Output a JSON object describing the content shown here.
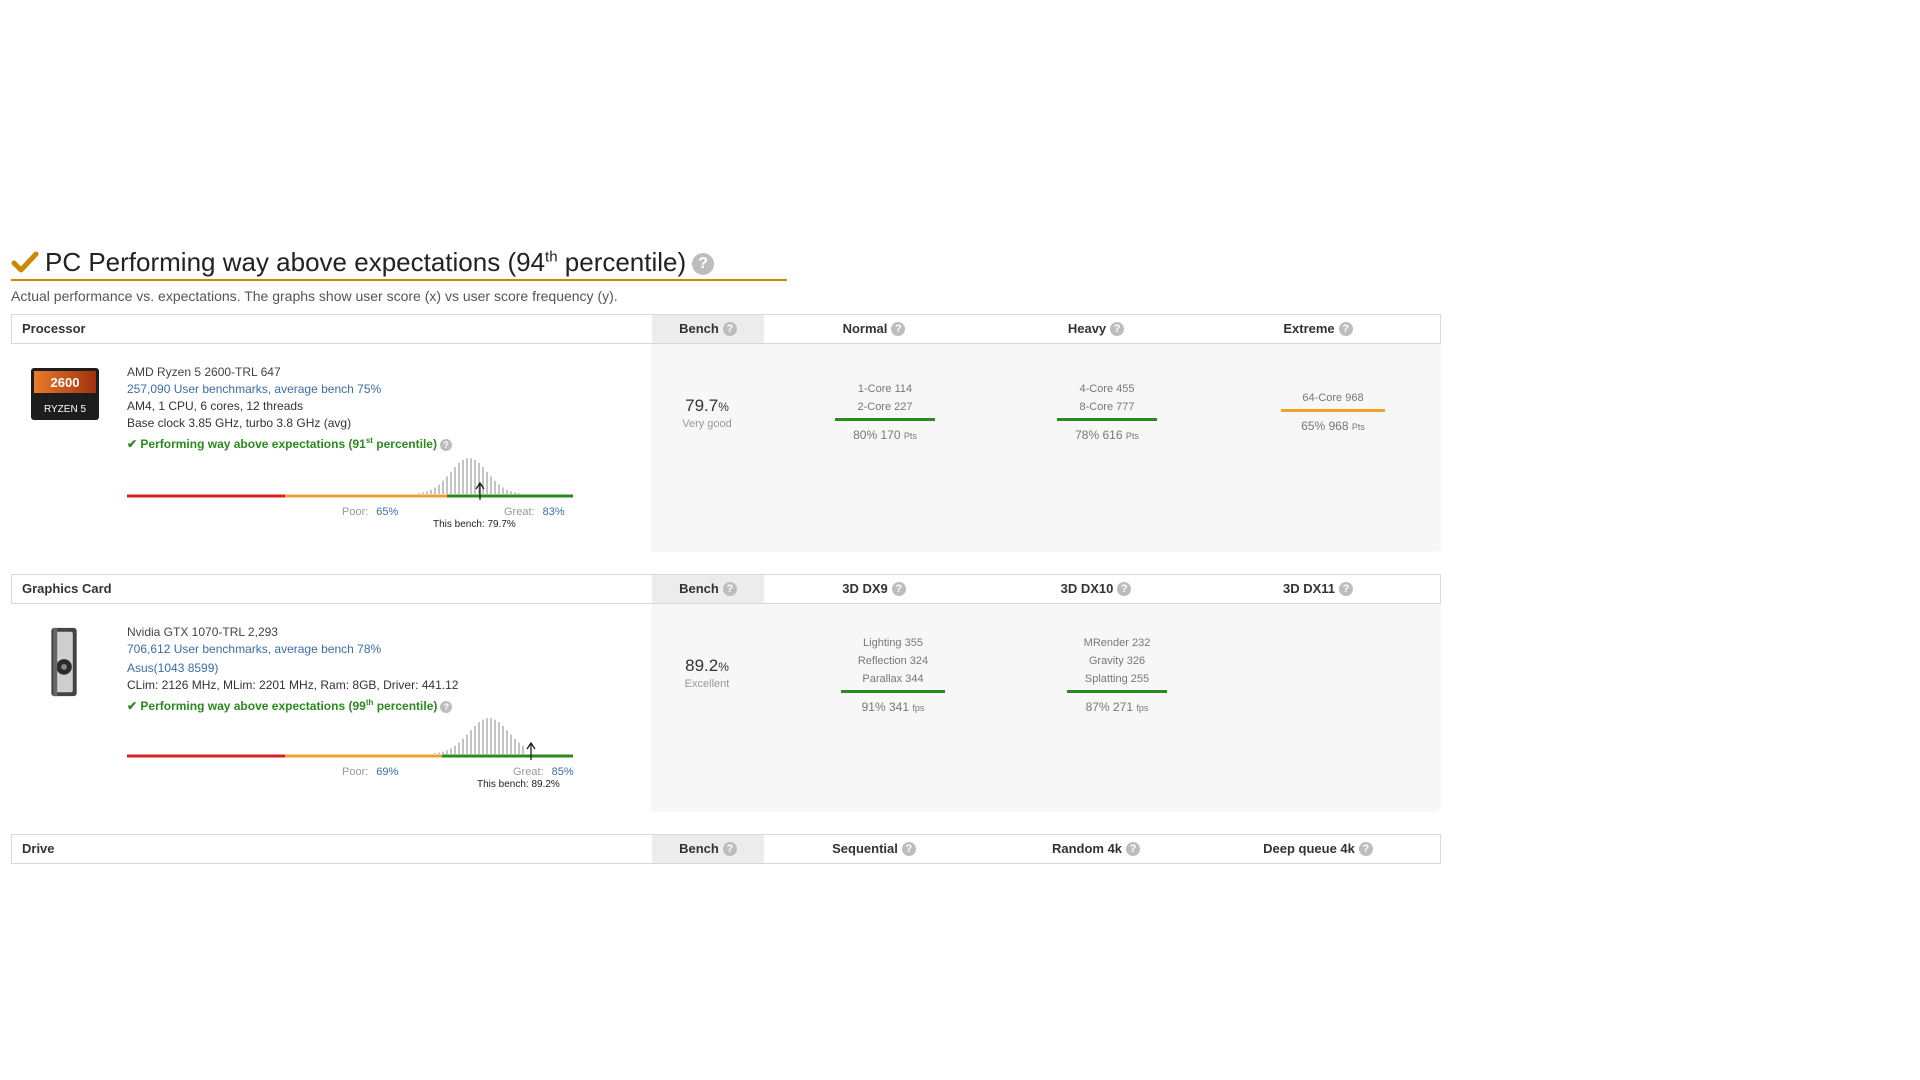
{
  "heading": {
    "title_main": "PC Performing way above expectations (94",
    "title_sup": "th",
    "title_end": " percentile)",
    "subtitle": "Actual performance vs. expectations. The graphs show user score (x) vs user score frequency (y).",
    "help": "?"
  },
  "colors": {
    "accent": "#c98a00",
    "green": "#2a8a1e",
    "orange": "#f0a030",
    "red": "#d42020",
    "link": "#3a6ea5"
  },
  "processor": {
    "header": {
      "name": "Processor",
      "bench": "Bench",
      "cols": [
        "Normal",
        "Heavy",
        "Extreme"
      ]
    },
    "thumb": {
      "top": "2600",
      "bottom": "RYZEN 5"
    },
    "name": "AMD Ryzen 5 2600-TRL 647",
    "users": "257,090 User benchmarks, average bench 75%",
    "spec1": "AM4, 1 CPU, 6 cores, 12 threads",
    "spec2": "Base clock 3.85 GHz, turbo 3.8 GHz (avg)",
    "perf_main": "Performing way above expectations (91",
    "perf_sup": "st",
    "perf_end": " percentile)",
    "dist": {
      "poor_label": "Poor:",
      "poor_value": "65%",
      "great_label": "Great:",
      "great_value": "83%",
      "this_bench": "This bench: 79.7%",
      "bench_fraction": 0.797
    },
    "score": {
      "value": "79.7",
      "unit": "%",
      "grade": "Very good"
    },
    "normal": {
      "lines": [
        "1-Core 114",
        "2-Core 227"
      ],
      "result": "80% 170",
      "unit": "Pts",
      "bar_color": "#2a8a1e"
    },
    "heavy": {
      "lines": [
        "4-Core 455",
        "8-Core 777"
      ],
      "result": "78% 616",
      "unit": "Pts",
      "bar_color": "#2a8a1e"
    },
    "extreme": {
      "lines": [
        "64-Core 968"
      ],
      "result": "65% 968",
      "unit": "Pts",
      "bar_color": "#f0a030"
    }
  },
  "gpu": {
    "header": {
      "name": "Graphics Card",
      "bench": "Bench",
      "cols": [
        "3D DX9",
        "3D DX10",
        "3D DX11"
      ]
    },
    "name": "Nvidia GTX 1070-TRL 2,293",
    "users": "706,612 User benchmarks, average bench 78%",
    "vendor": "Asus(1043 8599)",
    "spec": "CLim: 2126 MHz, MLim: 2201 MHz, Ram: 8GB, Driver: 441.12",
    "perf_main": "Performing way above expectations (99",
    "perf_sup": "th",
    "perf_end": " percentile)",
    "dist": {
      "poor_label": "Poor:",
      "poor_value": "69%",
      "great_label": "Great:",
      "great_value": "85%",
      "this_bench": "This bench: 89.2%",
      "bench_fraction": 0.892
    },
    "score": {
      "value": "89.2",
      "unit": "%",
      "grade": "Excellent"
    },
    "dx9": {
      "lines": [
        "Lighting 355",
        "Reflection 324",
        "Parallax 344"
      ],
      "result": "91% 341",
      "unit": "fps",
      "bar_color": "#2a8a1e"
    },
    "dx10": {
      "lines": [
        "MRender 232",
        "Gravity 326",
        "Splatting 255"
      ],
      "result": "87% 271",
      "unit": "fps",
      "bar_color": "#2a8a1e"
    }
  },
  "drive": {
    "header": {
      "name": "Drive",
      "bench": "Bench",
      "cols": [
        "Sequential",
        "Random 4k",
        "Deep queue 4k"
      ]
    }
  }
}
